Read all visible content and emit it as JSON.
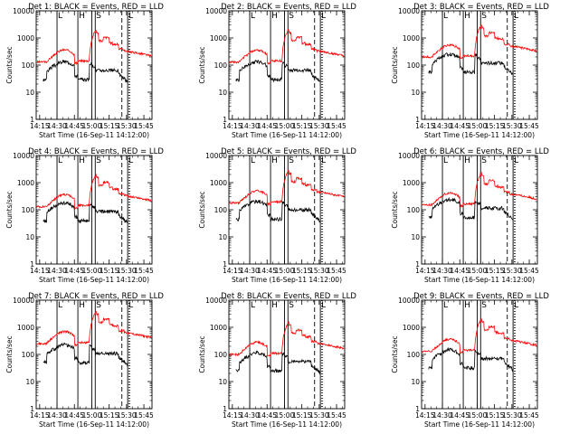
{
  "figure": {
    "background": "#ffffff",
    "series_colors": {
      "events": "#000000",
      "lld": "#ff0000"
    }
  },
  "axes_common": {
    "ylabel": "Counts/sec",
    "xlabel": "Start Time (16-Sep-11 14:12:00)",
    "x_tick_labels": [
      "14:15",
      "14:30",
      "14:45",
      "15:00",
      "15:15",
      "15:30",
      "15:45"
    ],
    "y_tick_labels": [
      "1",
      "10",
      "100",
      "1000",
      "10000"
    ],
    "level_markers": [
      "L",
      "H",
      "S",
      "L"
    ]
  },
  "chart_data": [
    {
      "type": "line",
      "title": "Det 1: BLACK = Events, RED = LLD",
      "x_range": [
        "14:12",
        "15:52"
      ],
      "y_range": [
        1,
        10000
      ],
      "y_scale": "log",
      "events_scale": 0.45,
      "red_baseline": 130,
      "series": [
        {
          "name": "Events",
          "color": "#000000"
        },
        {
          "name": "LLD",
          "color": "#ff0000"
        }
      ],
      "dashed_line_time": "15:26",
      "solid_lines": [
        "14:30",
        "14:48",
        "15:00",
        "15:03",
        "15:31"
      ],
      "dotted_lines": [
        "15:32",
        "15:33"
      ]
    },
    {
      "type": "line",
      "title": "Det 2: BLACK = Events, RED = LLD",
      "x_range": [
        "14:12",
        "15:52"
      ],
      "y_range": [
        1,
        10000
      ],
      "y_scale": "log",
      "events_scale": 0.45,
      "red_baseline": 130,
      "series": [
        {
          "name": "Events",
          "color": "#000000"
        },
        {
          "name": "LLD",
          "color": "#ff0000"
        }
      ],
      "dashed_line_time": "15:26",
      "solid_lines": [
        "14:30",
        "14:48",
        "15:00",
        "15:03",
        "15:31"
      ],
      "dotted_lines": [
        "15:32",
        "15:33"
      ]
    },
    {
      "type": "line",
      "title": "Det 3: BLACK = Events, RED = LLD",
      "x_range": [
        "14:12",
        "15:52"
      ],
      "y_range": [
        1,
        10000
      ],
      "y_scale": "log",
      "events_scale": 0.55,
      "red_baseline": 200,
      "series": [
        {
          "name": "Events",
          "color": "#000000"
        },
        {
          "name": "LLD",
          "color": "#ff0000"
        }
      ],
      "dashed_line_time": "15:26",
      "solid_lines": [
        "14:30",
        "14:48",
        "15:00",
        "15:03",
        "15:31"
      ],
      "dotted_lines": [
        "15:32",
        "15:33"
      ]
    },
    {
      "type": "line",
      "title": "Det 4: BLACK = Events, RED = LLD",
      "x_range": [
        "14:12",
        "15:52"
      ],
      "y_range": [
        1,
        10000
      ],
      "y_scale": "log",
      "events_scale": 0.6,
      "red_baseline": 130,
      "series": [
        {
          "name": "Events",
          "color": "#000000"
        },
        {
          "name": "LLD",
          "color": "#ff0000"
        }
      ],
      "dashed_line_time": "15:26",
      "solid_lines": [
        "14:30",
        "14:48",
        "15:00",
        "15:03",
        "15:31"
      ],
      "dotted_lines": [
        "15:32",
        "15:33"
      ]
    },
    {
      "type": "line",
      "title": "Det 5: BLACK = Events, RED = LLD",
      "x_range": [
        "14:12",
        "15:52"
      ],
      "y_range": [
        1,
        10000
      ],
      "y_scale": "log",
      "events_scale": 0.5,
      "red_baseline": 180,
      "series": [
        {
          "name": "Events",
          "color": "#000000"
        },
        {
          "name": "LLD",
          "color": "#ff0000"
        }
      ],
      "dashed_line_time": "15:26",
      "solid_lines": [
        "14:30",
        "14:48",
        "15:00",
        "15:03",
        "15:31"
      ],
      "dotted_lines": [
        "15:32",
        "15:33"
      ]
    },
    {
      "type": "line",
      "title": "Det 6: BLACK = Events, RED = LLD",
      "x_range": [
        "14:12",
        "15:52"
      ],
      "y_range": [
        1,
        10000
      ],
      "y_scale": "log",
      "events_scale": 0.7,
      "red_baseline": 150,
      "series": [
        {
          "name": "Events",
          "color": "#000000"
        },
        {
          "name": "LLD",
          "color": "#ff0000"
        }
      ],
      "dashed_line_time": "15:26",
      "solid_lines": [
        "14:30",
        "14:48",
        "15:00",
        "15:03",
        "15:31"
      ],
      "dotted_lines": [
        "15:32",
        "15:33"
      ]
    },
    {
      "type": "line",
      "title": "Det 7: BLACK = Events, RED = LLD",
      "x_range": [
        "14:12",
        "15:52"
      ],
      "y_range": [
        1,
        10000
      ],
      "y_scale": "log",
      "events_scale": 0.4,
      "red_baseline": 250,
      "series": [
        {
          "name": "Events",
          "color": "#000000"
        },
        {
          "name": "LLD",
          "color": "#ff0000"
        }
      ],
      "dashed_line_time": "15:26",
      "solid_lines": [
        "14:30",
        "14:48",
        "15:00",
        "15:03",
        "15:31"
      ],
      "dotted_lines": [
        "15:32",
        "15:33"
      ]
    },
    {
      "type": "line",
      "title": "Det 8: BLACK = Events, RED = LLD",
      "x_range": [
        "14:12",
        "15:52"
      ],
      "y_range": [
        1,
        10000
      ],
      "y_scale": "log",
      "events_scale": 0.5,
      "red_baseline": 100,
      "series": [
        {
          "name": "Events",
          "color": "#000000"
        },
        {
          "name": "LLD",
          "color": "#ff0000"
        }
      ],
      "dashed_line_time": "15:26",
      "solid_lines": [
        "14:30",
        "14:48",
        "15:00",
        "15:03",
        "15:31"
      ],
      "dotted_lines": [
        "15:32",
        "15:33"
      ]
    },
    {
      "type": "line",
      "title": "Det 9: BLACK = Events, RED = LLD",
      "x_range": [
        "14:12",
        "15:52"
      ],
      "y_range": [
        1,
        10000
      ],
      "y_scale": "log",
      "events_scale": 0.5,
      "red_baseline": 130,
      "series": [
        {
          "name": "Events",
          "color": "#000000"
        },
        {
          "name": "LLD",
          "color": "#ff0000"
        }
      ],
      "dashed_line_time": "15:26",
      "solid_lines": [
        "14:30",
        "14:48",
        "15:00",
        "15:03",
        "15:31"
      ],
      "dotted_lines": [
        "15:32",
        "15:33"
      ]
    }
  ]
}
